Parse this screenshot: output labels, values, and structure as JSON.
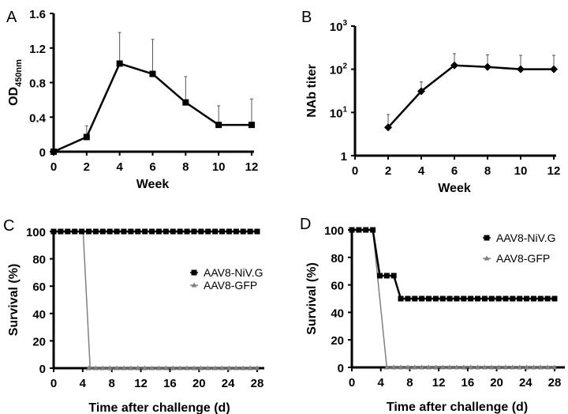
{
  "chart_data": [
    {
      "panel": "A",
      "type": "line",
      "xlabel": "Week",
      "ylabel": "OD",
      "ylabel_sub": "450nm",
      "xlim": [
        0,
        12
      ],
      "ylim": [
        0,
        1.6
      ],
      "xticks": [
        "0",
        "2",
        "4",
        "6",
        "8",
        "10",
        "12"
      ],
      "yticks": [
        "0",
        "0.4",
        "0.8",
        "1.2",
        "1.6"
      ],
      "x": [
        0,
        2,
        4,
        6,
        8,
        10,
        12
      ],
      "values": [
        0,
        0.17,
        1.02,
        0.9,
        0.57,
        0.31,
        0.31
      ],
      "error_upper": [
        0,
        0.3,
        1.38,
        1.3,
        0.87,
        0.53,
        0.61
      ],
      "marker": "square"
    },
    {
      "panel": "B",
      "type": "line",
      "yscale": "log",
      "xlabel": "Week",
      "ylabel": "NAb titer",
      "xlim": [
        0,
        12
      ],
      "ylim": [
        1,
        1000
      ],
      "xticks": [
        "0",
        "2",
        "4",
        "6",
        "8",
        "10",
        "12"
      ],
      "yticks": [
        {
          "base": "1",
          "exp": ""
        },
        {
          "base": "10",
          "exp": "1"
        },
        {
          "base": "10",
          "exp": "2"
        },
        {
          "base": "10",
          "exp": "3"
        }
      ],
      "x": [
        2,
        4,
        6,
        8,
        10,
        12
      ],
      "values": [
        4.5,
        31,
        123,
        113,
        100,
        100
      ],
      "error_upper": [
        9,
        51,
        230,
        215,
        210,
        210
      ],
      "marker": "diamond"
    },
    {
      "panel": "C",
      "type": "line",
      "xlabel": "Time after challenge (d)",
      "ylabel": "Survival  (%)",
      "xlim": [
        0,
        29
      ],
      "ylim": [
        0,
        100
      ],
      "xticks": [
        "0",
        "4",
        "8",
        "12",
        "16",
        "20",
        "24",
        "28"
      ],
      "yticks": [
        "0",
        "20",
        "40",
        "60",
        "80",
        "100"
      ],
      "legend_position": "right-middle",
      "series": [
        {
          "name": "AAV8-NiV.G",
          "color": "#000000",
          "marker": "square",
          "points": [
            [
              0,
              100
            ],
            [
              29,
              100
            ]
          ]
        },
        {
          "name": "AAV8-GFP",
          "color": "#808080",
          "marker": "triangle",
          "points": [
            [
              0,
              100
            ],
            [
              4.2,
              100
            ],
            [
              5.2,
              0
            ],
            [
              29,
              0
            ]
          ]
        }
      ]
    },
    {
      "panel": "D",
      "type": "line",
      "xlabel": "Time after challenge (d)",
      "ylabel": "Survival  (%)",
      "xlim": [
        0,
        29
      ],
      "ylim": [
        0,
        100
      ],
      "xticks": [
        "0",
        "4",
        "8",
        "12",
        "16",
        "20",
        "24",
        "28"
      ],
      "yticks": [
        "0",
        "20",
        "40",
        "60",
        "80",
        "100"
      ],
      "legend_position": "top-right",
      "series": [
        {
          "name": "AAV8-NiV.G",
          "color": "#000000",
          "marker": "square",
          "points": [
            [
              0,
              100
            ],
            [
              3,
              100
            ],
            [
              4,
              66.7
            ],
            [
              6,
              66.7
            ],
            [
              7,
              50
            ],
            [
              29,
              50
            ]
          ]
        },
        {
          "name": "AAV8-GFP",
          "color": "#808080",
          "marker": "triangle",
          "points": [
            [
              0,
              100
            ],
            [
              3,
              100
            ],
            [
              5,
              0
            ],
            [
              29,
              0
            ]
          ]
        }
      ]
    }
  ]
}
